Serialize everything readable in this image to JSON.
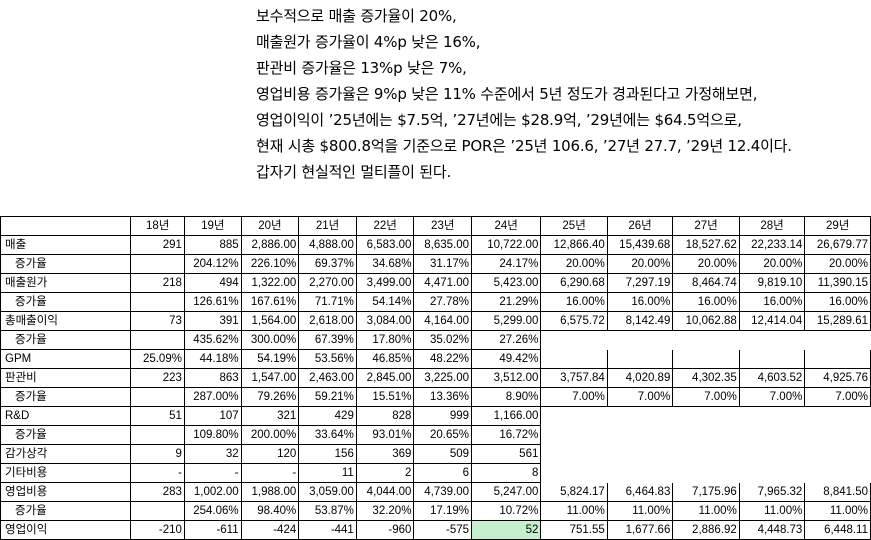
{
  "paragraph": [
    "보수적으로 매출 증가율이 20%,",
    "매출원가 증가율이 4%p 낮은 16%,",
    "판관비 증가율은 13%p 낮은 7%,",
    "영업비용 증가율은 9%p 낮은 11% 수준에서 5년 정도가 경과된다고 가정해보면,",
    "영업이익이 ’25년에는 $7.5억, ’27년에는 $28.9억, ’29년에는 $64.5억으로,",
    "현재 시총 $800.8억을 기준으로 POR은 ’25년 106.6, ’27년 27.7, ’29년 12.4이다.",
    "갑자기 현실적인 멀티플이 된다."
  ],
  "table": {
    "years": [
      "18년",
      "19년",
      "20년",
      "21년",
      "22년",
      "23년",
      "24년",
      "25년",
      "26년",
      "27년",
      "28년",
      "29년"
    ],
    "rows": [
      {
        "label": "매출",
        "cells": [
          "291",
          "885",
          "2,886.00",
          "4,888.00",
          "6,583.00",
          "8,635.00",
          "10,722.00",
          "12,866.40",
          "15,439.68",
          "18,527.62",
          "22,233.14",
          "26,679.77"
        ]
      },
      {
        "label": "증가율",
        "cells": [
          "",
          "204.12%",
          "226.10%",
          "69.37%",
          "34.68%",
          "31.17%",
          "24.17%",
          "20.00%",
          "20.00%",
          "20.00%",
          "20.00%",
          "20.00%"
        ]
      },
      {
        "label": "매출원가",
        "cells": [
          "218",
          "494",
          "1,322.00",
          "2,270.00",
          "3,499.00",
          "4,471.00",
          "5,423.00",
          "6,290.68",
          "7,297.19",
          "8,464.74",
          "9,819.10",
          "11,390.15"
        ]
      },
      {
        "label": "증가율",
        "cells": [
          "",
          "126.61%",
          "167.61%",
          "71.71%",
          "54.14%",
          "27.78%",
          "21.29%",
          "16.00%",
          "16.00%",
          "16.00%",
          "16.00%",
          "16.00%"
        ]
      },
      {
        "label": "총매출이익",
        "cells": [
          "73",
          "391",
          "1,564.00",
          "2,618.00",
          "3,084.00",
          "4,164.00",
          "5,299.00",
          "6,575.72",
          "8,142.49",
          "10,062.88",
          "12,414.04",
          "15,289.61"
        ]
      },
      {
        "label": "증가율",
        "cells": [
          "",
          "435.62%",
          "300.00%",
          "67.39%",
          "17.80%",
          "35.02%",
          "27.26%",
          "",
          "",
          "",
          "",
          ""
        ]
      },
      {
        "label": "GPM",
        "cells": [
          "25.09%",
          "44.18%",
          "54.19%",
          "53.56%",
          "46.85%",
          "48.22%",
          "49.42%",
          "",
          "",
          "",
          "",
          ""
        ]
      },
      {
        "label": "판관비",
        "cells": [
          "223",
          "863",
          "1,547.00",
          "2,463.00",
          "2,845.00",
          "3,225.00",
          "3,512.00",
          "3,757.84",
          "4,020.89",
          "4,302.35",
          "4,603.52",
          "4,925.76"
        ]
      },
      {
        "label": "증가율",
        "cells": [
          "",
          "287.00%",
          "79.26%",
          "59.21%",
          "15.51%",
          "13.36%",
          "8.90%",
          "7.00%",
          "7.00%",
          "7.00%",
          "7.00%",
          "7.00%"
        ]
      },
      {
        "label": "R&D",
        "cells": [
          "51",
          "107",
          "321",
          "429",
          "828",
          "999",
          "1,166.00",
          "",
          "",
          "",
          "",
          ""
        ]
      },
      {
        "label": "증가율",
        "cells": [
          "",
          "109.80%",
          "200.00%",
          "33.64%",
          "93.01%",
          "20.65%",
          "16.72%",
          "",
          "",
          "",
          "",
          ""
        ]
      },
      {
        "label": "감가상각",
        "cells": [
          "9",
          "32",
          "120",
          "156",
          "369",
          "509",
          "561",
          "",
          "",
          "",
          "",
          ""
        ]
      },
      {
        "label": "기타비용",
        "cells": [
          "-",
          "-",
          "-",
          "11",
          "2",
          "6",
          "8",
          "",
          "",
          "",
          "",
          ""
        ]
      },
      {
        "label": "영업비용",
        "cells": [
          "283",
          "1,002.00",
          "1,988.00",
          "3,059.00",
          "4,044.00",
          "4,739.00",
          "5,247.00",
          "5,824.17",
          "6,464.83",
          "7,175.96",
          "7,965.32",
          "8,841.50"
        ]
      },
      {
        "label": "증가율",
        "cells": [
          "",
          "254.06%",
          "98.40%",
          "53.87%",
          "32.20%",
          "17.19%",
          "10.72%",
          "11.00%",
          "11.00%",
          "11.00%",
          "11.00%",
          "11.00%"
        ]
      },
      {
        "label": "영업이익",
        "cells": [
          "-210",
          "-611",
          "-424",
          "-441",
          "-960",
          "-575",
          "52",
          "751.55",
          "1,677.66",
          "2,886.92",
          "4,448.73",
          "6,448.11"
        ]
      }
    ]
  },
  "colors": {
    "highlight": "#c6efce",
    "border": "#000000"
  }
}
